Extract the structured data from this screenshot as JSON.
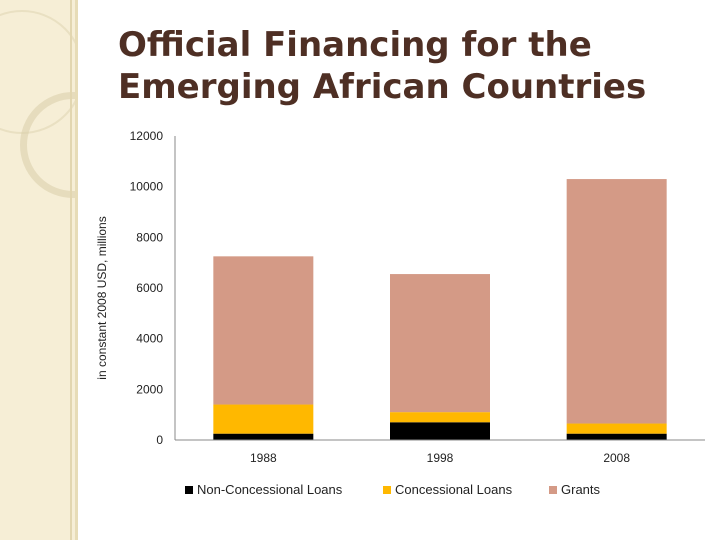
{
  "title": "Official Financing for the Emerging African Countries",
  "colors": {
    "non_concessional": "#000000",
    "concessional": "#ffb800",
    "grants": "#d49a86",
    "axis": "#888888"
  },
  "chart_data": {
    "type": "bar",
    "stacked": true,
    "title": "Official Financing for the Emerging African Countries",
    "xlabel": "",
    "ylabel": "in constant 2008 USD, millions",
    "categories": [
      "1988",
      "1998",
      "2008"
    ],
    "series": [
      {
        "name": "Non-Concessional Loans",
        "values": [
          250,
          700,
          250
        ]
      },
      {
        "name": "Concessional Loans",
        "values": [
          1150,
          400,
          400
        ]
      },
      {
        "name": "Grants",
        "values": [
          5850,
          5450,
          9650
        ]
      }
    ],
    "ylim": [
      0,
      12000
    ],
    "yticks": [
      "0",
      "2000",
      "4000",
      "6000",
      "8000",
      "10000",
      "12000"
    ],
    "legend_position": "bottom"
  }
}
